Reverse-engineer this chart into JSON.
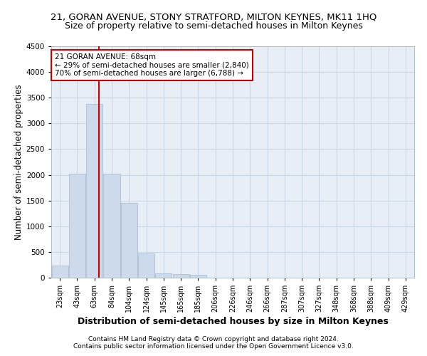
{
  "title": "21, GORAN AVENUE, STONY STRATFORD, MILTON KEYNES, MK11 1HQ",
  "subtitle": "Size of property relative to semi-detached houses in Milton Keynes",
  "xlabel": "Distribution of semi-detached houses by size in Milton Keynes",
  "ylabel": "Number of semi-detached properties",
  "footnote1": "Contains HM Land Registry data © Crown copyright and database right 2024.",
  "footnote2": "Contains public sector information licensed under the Open Government Licence v3.0.",
  "categories": [
    "23sqm",
    "43sqm",
    "63sqm",
    "84sqm",
    "104sqm",
    "124sqm",
    "145sqm",
    "165sqm",
    "185sqm",
    "206sqm",
    "226sqm",
    "246sqm",
    "266sqm",
    "287sqm",
    "307sqm",
    "327sqm",
    "348sqm",
    "368sqm",
    "388sqm",
    "409sqm",
    "429sqm"
  ],
  "values": [
    230,
    2020,
    3380,
    2020,
    1460,
    470,
    90,
    70,
    60,
    0,
    0,
    0,
    0,
    0,
    0,
    0,
    0,
    0,
    0,
    0,
    0
  ],
  "bar_color": "#ccdaeb",
  "bar_edge_color": "#a8bdd4",
  "vline_color": "#cc0000",
  "annotation_text": "21 GORAN AVENUE: 68sqm\n← 29% of semi-detached houses are smaller (2,840)\n70% of semi-detached houses are larger (6,788) →",
  "annotation_box_color": "#ffffff",
  "annotation_box_edge": "#cc0000",
  "ylim": [
    0,
    4500
  ],
  "yticks": [
    0,
    500,
    1000,
    1500,
    2000,
    2500,
    3000,
    3500,
    4000,
    4500
  ],
  "background_color": "#ffffff",
  "plot_bg_color": "#e8eef5",
  "grid_color": "#c8d4e0",
  "title_fontsize": 9.5,
  "subtitle_fontsize": 9,
  "axis_label_fontsize": 8.5,
  "tick_fontsize": 7,
  "footnote_fontsize": 6.5
}
